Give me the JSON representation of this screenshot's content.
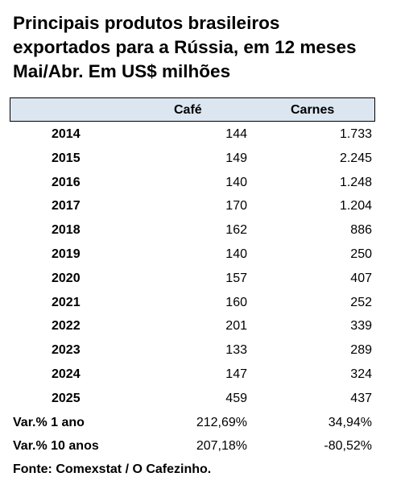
{
  "chart_data": {
    "type": "table",
    "title_lines": [
      "Principais produtos brasileiros",
      "exportados para a Rússia, em 12 meses",
      "Mai/Abr. Em US$ milhões"
    ],
    "columns": [
      "",
      "Café",
      "Carnes"
    ],
    "rows": [
      {
        "year": "2014",
        "cafe": "144",
        "carnes": "1.733"
      },
      {
        "year": "2015",
        "cafe": "149",
        "carnes": "2.245"
      },
      {
        "year": "2016",
        "cafe": "140",
        "carnes": "1.248"
      },
      {
        "year": "2017",
        "cafe": "170",
        "carnes": "1.204"
      },
      {
        "year": "2018",
        "cafe": "162",
        "carnes": "886"
      },
      {
        "year": "2019",
        "cafe": "140",
        "carnes": "250"
      },
      {
        "year": "2020",
        "cafe": "157",
        "carnes": "407"
      },
      {
        "year": "2021",
        "cafe": "160",
        "carnes": "252"
      },
      {
        "year": "2022",
        "cafe": "201",
        "carnes": "339"
      },
      {
        "year": "2023",
        "cafe": "133",
        "carnes": "289"
      },
      {
        "year": "2024",
        "cafe": "147",
        "carnes": "324"
      },
      {
        "year": "2025",
        "cafe": "459",
        "carnes": "437"
      }
    ],
    "summary": [
      {
        "label": "Var.% 1 ano",
        "cafe": "212,69%",
        "carnes": "34,94%"
      },
      {
        "label": "Var.% 10 anos",
        "cafe": "207,18%",
        "carnes": "-80,52%"
      }
    ],
    "source": "Fonte: Comexstat / O Cafezinho.",
    "header_color": "#dce6f1"
  }
}
